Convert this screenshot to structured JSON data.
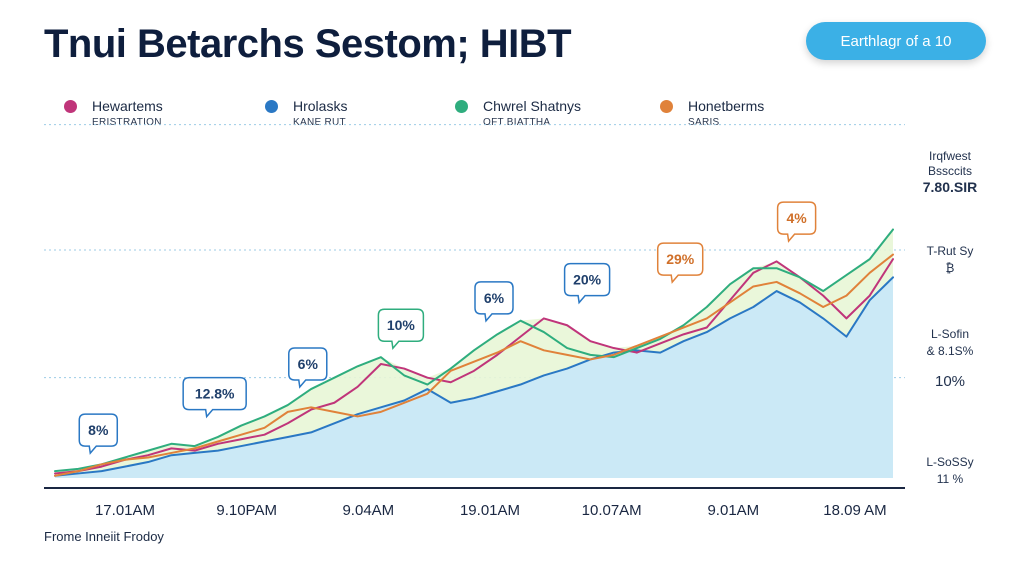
{
  "header": {
    "title": "Tnui Betarchs Sestom; HIBT",
    "action_label": "Earthlagr of a 10"
  },
  "legend": [
    {
      "name": "Hewartems",
      "sub": "ERISTRATION",
      "color": "#c0357a"
    },
    {
      "name": "Hrolasks",
      "sub": "KANE RUT",
      "color": "#2a78c4"
    },
    {
      "name": "Chwrel Shatnys",
      "sub": "OFT BIATTHA",
      "color": "#2fad7e"
    },
    {
      "name": "Honetberms",
      "sub": "SARIS",
      "color": "#e0823a"
    }
  ],
  "footer": {
    "text": "Frome Inneiit Frodoy"
  },
  "right_labels": [
    {
      "line1": "Irqfwest",
      "line2": "Bssccits",
      "line3": "7.80.SIR"
    },
    {
      "line1": "T-Rut Sy",
      "line2": "₿"
    },
    {
      "line1": "L-Sofin",
      "line2": "& 8.1S%"
    },
    {
      "line1": "10%"
    },
    {
      "line1": "L-SoSSy",
      "line2": "11 %"
    }
  ],
  "colors": {
    "area": "#cbe9f6",
    "area_green": "#e8f6d6",
    "grid": "#9ccbe6"
  },
  "chart_data": {
    "type": "line",
    "title": "Tnui Betarchs Sestom; HIBT",
    "xlabel": "",
    "ylabel": "",
    "tick_labels": [
      "17.01AM",
      "9.10PAM",
      "9.04AM",
      "19.01AM",
      "10.07AM",
      "9.01AM",
      "18.09 AM"
    ],
    "xlim": [
      0,
      36
    ],
    "ylim": [
      0,
      100
    ],
    "grid": "horizontal-dotted",
    "x": [
      0,
      1,
      2,
      3,
      4,
      5,
      6,
      7,
      8,
      9,
      10,
      11,
      12,
      13,
      14,
      15,
      16,
      17,
      18,
      19,
      20,
      21,
      22,
      23,
      24,
      25,
      26,
      27,
      28,
      29,
      30,
      31,
      32,
      33,
      34,
      35,
      36
    ],
    "series": [
      {
        "name": "Hrolasks",
        "color": "#2a78c4",
        "values": [
          1,
          2,
          3,
          5,
          7,
          10,
          11,
          12,
          14,
          16,
          18,
          20,
          24,
          28,
          31,
          34,
          39,
          33,
          35,
          38,
          41,
          45,
          48,
          52,
          55,
          56,
          55,
          60,
          64,
          70,
          75,
          82,
          77,
          70,
          62,
          78,
          88
        ]
      },
      {
        "name": "Hewartems",
        "color": "#c0357a",
        "values": [
          2,
          3,
          5,
          8,
          10,
          13,
          12,
          15,
          17,
          19,
          24,
          30,
          33,
          40,
          50,
          48,
          44,
          42,
          47,
          54,
          62,
          70,
          67,
          60,
          57,
          55,
          59,
          63,
          66,
          78,
          90,
          95,
          88,
          80,
          70,
          80,
          96
        ]
      },
      {
        "name": "Chwrel Shatnys",
        "color": "#2fad7e",
        "values": [
          3,
          4,
          6,
          9,
          12,
          15,
          14,
          18,
          23,
          27,
          32,
          39,
          44,
          49,
          53,
          45,
          41,
          48,
          56,
          63,
          69,
          64,
          57,
          54,
          53,
          57,
          61,
          67,
          75,
          85,
          92,
          92,
          88,
          82,
          89,
          96,
          109
        ]
      },
      {
        "name": "Honetberms",
        "color": "#e0823a",
        "values": [
          1,
          3,
          6,
          8,
          9,
          11,
          13,
          16,
          19,
          22,
          29,
          31,
          29,
          27,
          29,
          33,
          37,
          47,
          51,
          55,
          60,
          56,
          54,
          52,
          54,
          58,
          62,
          66,
          70,
          77,
          84,
          86,
          81,
          75,
          80,
          90,
          98
        ]
      }
    ],
    "annotations": [
      {
        "text": "8%",
        "x": 1,
        "y": 21,
        "color": "#2a78c4"
      },
      {
        "text": "12.8%",
        "x": 6,
        "y": 37,
        "color": "#2a78c4"
      },
      {
        "text": "6%",
        "x": 10,
        "y": 50,
        "color": "#2a78c4"
      },
      {
        "text": "10%",
        "x": 14,
        "y": 67,
        "color": "#2fad7e"
      },
      {
        "text": "6%",
        "x": 18,
        "y": 79,
        "color": "#2a78c4"
      },
      {
        "text": "20%",
        "x": 22,
        "y": 87,
        "color": "#2a78c4"
      },
      {
        "text": "29%",
        "x": 26,
        "y": 96,
        "color": "#e0823a"
      },
      {
        "text": "4%",
        "x": 31,
        "y": 114,
        "color": "#e0823a"
      }
    ]
  }
}
